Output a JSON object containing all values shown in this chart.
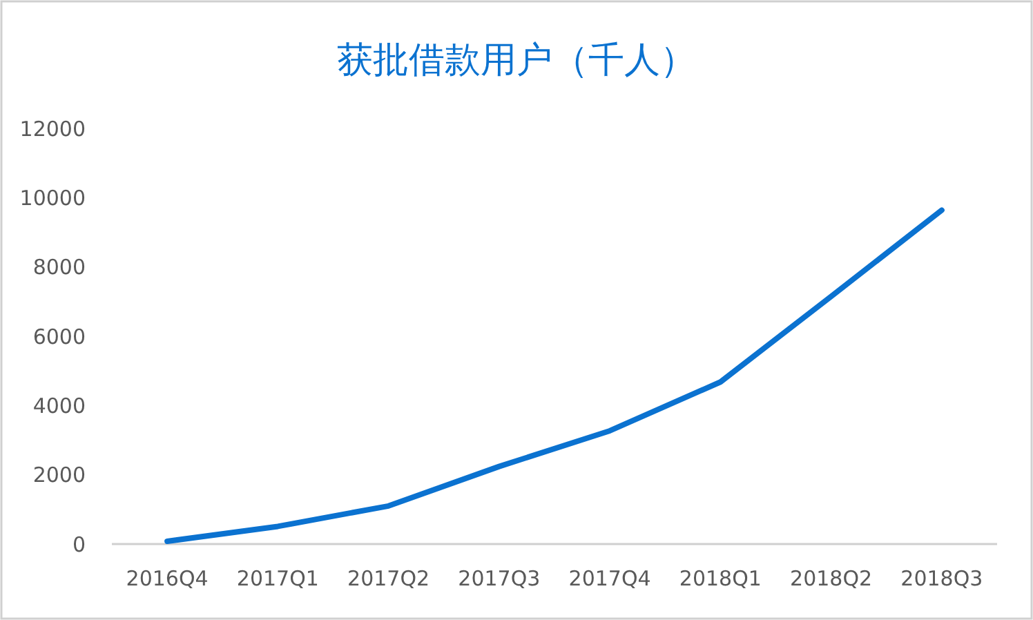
{
  "chart_data": {
    "type": "line",
    "title": "获批借款用户（千人）",
    "categories": [
      "2016Q4",
      "2017Q1",
      "2017Q2",
      "2017Q3",
      "2017Q4",
      "2018Q1",
      "2018Q2",
      "2018Q3"
    ],
    "series": [
      {
        "color": "#0b72d0",
        "values": [
          80,
          510,
          1100,
          2240,
          3270,
          4680,
          7150,
          9640
        ]
      }
    ],
    "ylim": [
      0,
      12000
    ],
    "yticks": [
      0,
      2000,
      4000,
      6000,
      8000,
      10000,
      12000
    ],
    "grid": false,
    "marker": "none",
    "line_style": "solid"
  }
}
